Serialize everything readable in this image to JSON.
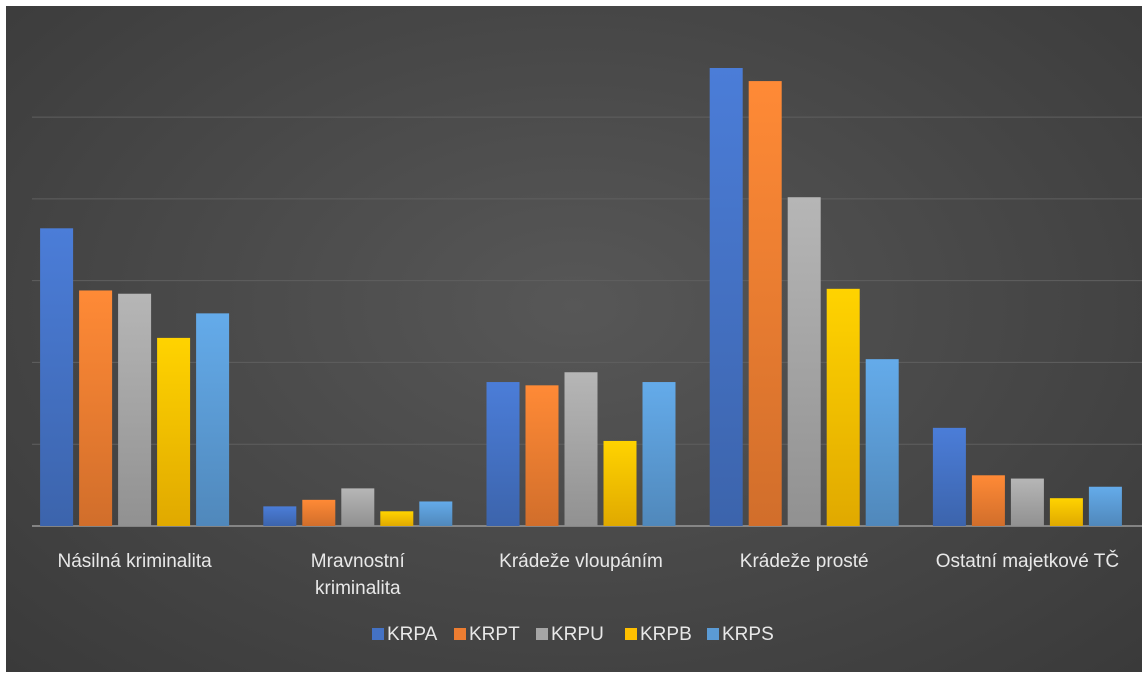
{
  "chart_data": {
    "type": "bar",
    "title": "",
    "xlabel": "",
    "ylabel": "",
    "ylim": [
      0,
      280
    ],
    "grid": true,
    "legend_position": "bottom",
    "categories": [
      [
        "Násilná kriminalita"
      ],
      [
        "Mravnostní",
        "kriminalita"
      ],
      [
        "Krádeže vloupáním"
      ],
      [
        "Krádeže prosté"
      ],
      [
        "Ostatní majetkové TČ"
      ]
    ],
    "series": [
      {
        "name": "KRPA",
        "color": "#4472c4",
        "values": [
          182,
          12,
          88,
          280,
          60
        ]
      },
      {
        "name": "KRPT",
        "color": "#ed7d31",
        "values": [
          144,
          16,
          86,
          272,
          31
        ]
      },
      {
        "name": "KRPU",
        "color": "#a5a5a5",
        "values": [
          142,
          23,
          94,
          201,
          29
        ]
      },
      {
        "name": "KRPB",
        "color": "#ffc000",
        "values": [
          115,
          9,
          52,
          145,
          17
        ]
      },
      {
        "name": "KRPS",
        "color": "#5b9bd5",
        "values": [
          130,
          15,
          88,
          102,
          24
        ]
      }
    ]
  }
}
